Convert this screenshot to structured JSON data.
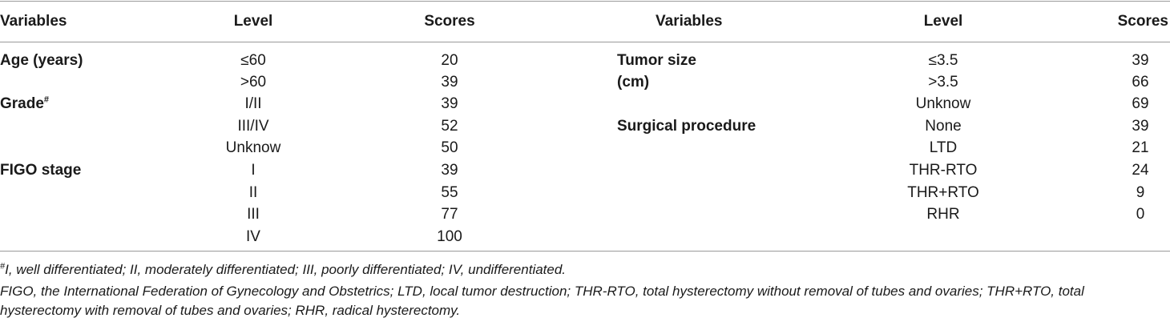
{
  "header": {
    "left": {
      "variables": "Variables",
      "level": "Level",
      "scores": "Scores"
    },
    "right": {
      "variables": "Variables",
      "level": "Level",
      "scores": "Scores"
    }
  },
  "left_rows": [
    {
      "variable": "Age (years)",
      "level": "≤60",
      "score": "20"
    },
    {
      "variable": "",
      "level": ">60",
      "score": "39"
    },
    {
      "variable": "Grade",
      "variable_sup": "#",
      "level": "I/II",
      "score": "39"
    },
    {
      "variable": "",
      "level": "III/IV",
      "score": "52"
    },
    {
      "variable": "",
      "level": "Unknow",
      "score": "50"
    },
    {
      "variable": "FIGO stage",
      "level": "I",
      "score": "39"
    },
    {
      "variable": "",
      "level": "II",
      "score": "55"
    },
    {
      "variable": "",
      "level": "III",
      "score": "77"
    },
    {
      "variable": "",
      "level": "IV",
      "score": "100"
    }
  ],
  "right_rows": [
    {
      "variable": "Tumor size",
      "level": "≤3.5",
      "score": "39"
    },
    {
      "variable": "(cm)",
      "level": ">3.5",
      "score": "66"
    },
    {
      "variable": "",
      "level": "Unknow",
      "score": "69"
    },
    {
      "variable": "Surgical procedure",
      "level": "None",
      "score": "39"
    },
    {
      "variable": "",
      "level": "LTD",
      "score": "21"
    },
    {
      "variable": "",
      "level": "THR-RTO",
      "score": "24"
    },
    {
      "variable": "",
      "level": "THR+RTO",
      "score": "9"
    },
    {
      "variable": "",
      "level": "RHR",
      "score": "0"
    }
  ],
  "footnotes": {
    "note1_sup": "#",
    "note1": "I, well differentiated; II, moderately differentiated; III, poorly differentiated; IV, undifferentiated.",
    "note2_line1": "FIGO, the International Federation of Gynecology and Obstetrics; LTD, local tumor destruction; THR-RTO, total hysterectomy without removal of tubes and ovaries; THR+RTO, total",
    "note2_line2": "hysterectomy with removal of tubes and ovaries; RHR, radical hysterectomy."
  }
}
